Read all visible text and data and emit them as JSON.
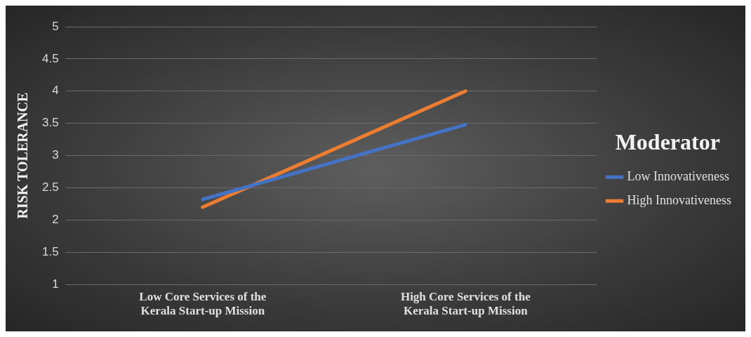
{
  "chart_data": {
    "type": "line",
    "ylabel": "RISK TOLERANCE",
    "legend_title": "Moderator",
    "categories": [
      "Low Core Services of the Kerala Start-up Mission",
      "High Core Services of the Kerala Start-up Mission"
    ],
    "series": [
      {
        "name": "Low Innovativeness",
        "color": "#4472c4",
        "values": [
          2.32,
          3.48
        ]
      },
      {
        "name": "High Innovativeness",
        "color": "#ed7d31",
        "values": [
          2.2,
          4.0
        ]
      }
    ],
    "ylim": [
      1,
      5
    ],
    "yticks": [
      1,
      1.5,
      2,
      2.5,
      3,
      3.5,
      4,
      4.5,
      5
    ],
    "grid": "y",
    "legend": "right",
    "marker": "none",
    "line_style": "solid"
  }
}
